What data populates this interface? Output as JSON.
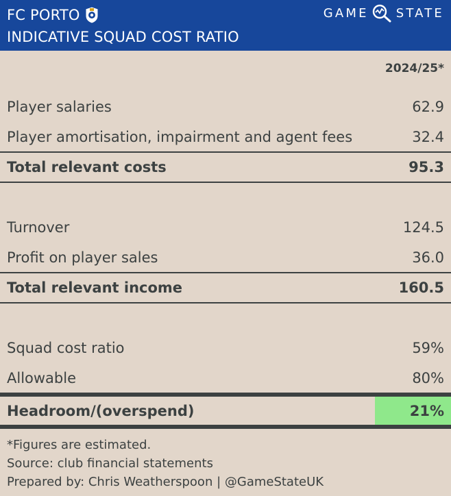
{
  "header": {
    "club": "FC PORTO",
    "subtitle": "INDICATIVE SQUAD COST RATIO",
    "brand_left": "GAME",
    "brand_right": "STATE",
    "brand_icon": "magnifier-chart-icon",
    "crest_icon": "club-crest-icon"
  },
  "column_header": "2024/25*",
  "rows": {
    "salaries": {
      "label": "Player salaries",
      "value": "62.9"
    },
    "amortisation": {
      "label": "Player amortisation, impairment and agent fees",
      "value": "32.4"
    },
    "total_costs": {
      "label": "Total relevant costs",
      "value": "95.3"
    },
    "turnover": {
      "label": "Turnover",
      "value": "124.5"
    },
    "player_sales": {
      "label": "Profit on player sales",
      "value": "36.0"
    },
    "total_income": {
      "label": "Total relevant income",
      "value": "160.5"
    },
    "squad_ratio": {
      "label": "Squad cost ratio",
      "value": "59%"
    },
    "allowable": {
      "label": "Allowable",
      "value": "80%"
    },
    "headroom": {
      "label": "Headroom/(overspend)",
      "value": "21%"
    }
  },
  "notes": {
    "estimated": "*Figures are estimated.",
    "source": "Source: club financial statements",
    "prepared": "Prepared by: Chris Weatherspoon | @GameStateUK"
  },
  "colors": {
    "header_bg": "#17479b",
    "page_bg": "#e2d6ca",
    "text": "#3c4141",
    "highlight": "#8fe88b"
  }
}
